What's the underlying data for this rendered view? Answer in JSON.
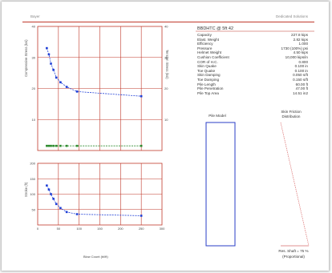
{
  "header": {
    "left_text": "Bayer",
    "right_text": "Dedicated Solutions"
  },
  "right_panel": {
    "title": "BBDHTC @ 5ft 42",
    "rows": [
      {
        "label": "Capacity",
        "value": "227.8 kips"
      },
      {
        "label": "Elast. Weight",
        "value": "2.82 kips"
      },
      {
        "label": "Efficiency",
        "value": "1.000"
      },
      {
        "label": "Pressure",
        "value": "1730 (100%) psi"
      },
      {
        "label": "Helmet Weight",
        "value": "4.50 kips"
      },
      {
        "label": "Cushion Coefficient",
        "value": "10,000 kips/in"
      },
      {
        "label": "COR of H.C.",
        "value": "0.800"
      },
      {
        "label": "Skin Quake",
        "value": "0.100 in"
      },
      {
        "label": "Toe Quake",
        "value": "0.100 in"
      },
      {
        "label": "Skin Damping",
        "value": "0.050 s/ft"
      },
      {
        "label": "Toe Damping",
        "value": "0.150 s/ft"
      },
      {
        "label": "Pile Length",
        "value": "60.00 ft"
      },
      {
        "label": "Pile Penetration",
        "value": "47.00 ft"
      },
      {
        "label": "Pile Top Area",
        "value": "14.51 in2"
      }
    ],
    "pile_model_label": "Pile Model",
    "skin_friction_label": "Skin Friction\nDistribution",
    "footer_line1": "Res. Shaft = 75 %",
    "footer_line2": "(Proportional)"
  },
  "chart_data": [
    {
      "type": "line",
      "series": [
        {
          "name": "",
          "color": "#1f3fd6",
          "style": "dashed-line-with-markers",
          "x": [
            22,
            27,
            32,
            38,
            45,
            55,
            70,
            95,
            250
          ],
          "y": [
            33,
            31,
            28,
            26,
            23.5,
            22,
            20.5,
            19,
            17.5
          ]
        },
        {
          "name": "",
          "color": "#2e8b2e",
          "style": "dashed-line-with-markers",
          "axis": "right",
          "x": [
            22,
            27,
            32,
            38,
            45,
            55,
            70,
            95,
            250
          ],
          "y": [
            1.5,
            1.5,
            1.5,
            1.5,
            1.5,
            1.5,
            1.5,
            1.5,
            1.5
          ]
        }
      ],
      "xlim": [
        0,
        300
      ],
      "ylim": [
        0,
        40
      ],
      "yticks": [
        "10",
        "20",
        "30",
        "40"
      ],
      "y2lim": [
        0,
        40
      ],
      "y2ticks": [
        "10",
        "20",
        "30",
        "40"
      ],
      "ylabel": "Compressive Stress (ksi)",
      "y2label": "Tension Stress (ksi)",
      "grid": true
    },
    {
      "type": "line",
      "series": [
        {
          "name": "",
          "color": "#1f3fd6",
          "style": "dashed-line-with-markers",
          "x": [
            22,
            27,
            32,
            38,
            45,
            55,
            70,
            95,
            250
          ],
          "y": [
            128,
            115,
            100,
            85,
            68,
            55,
            42,
            35,
            30
          ]
        }
      ],
      "xlim": [
        0,
        300
      ],
      "ylim": [
        0,
        200
      ],
      "xticks": [
        "0",
        "50",
        "100",
        "150",
        "200",
        "250",
        "300"
      ],
      "yticks": [
        "50",
        "100",
        "150",
        "200"
      ],
      "xlabel": "Blow Count (bl/ft)",
      "ylabel": "Stroke (ft)",
      "grid": true
    }
  ]
}
